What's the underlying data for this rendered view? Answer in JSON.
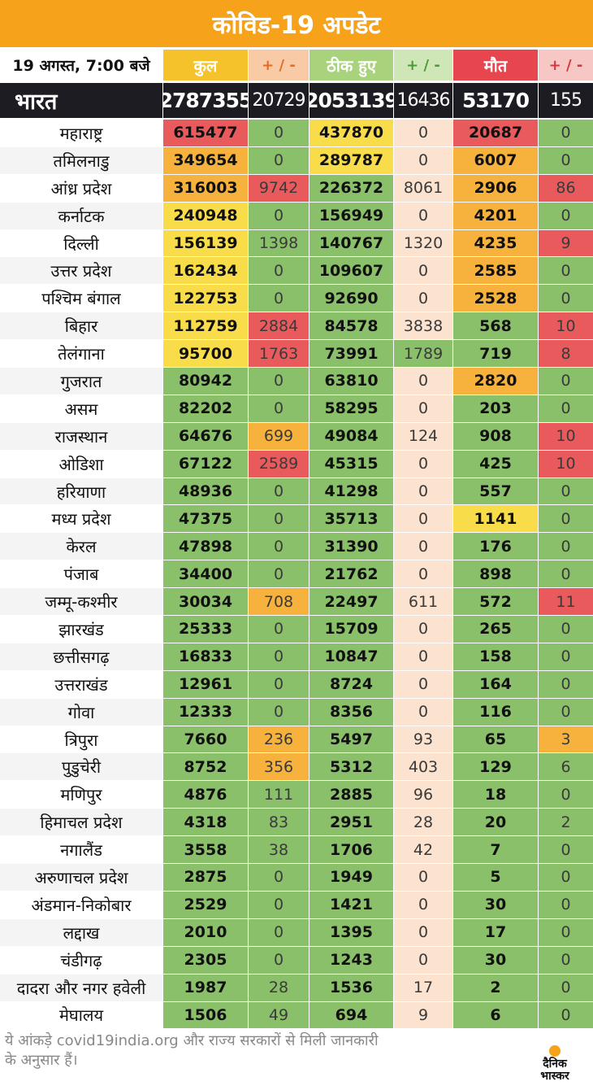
{
  "title": "कोविड-19 अपडेट",
  "header": {
    "date": "19 अगस्त, 7:00 बजे",
    "total": "कुल",
    "pm1": "+ / -",
    "recovered": "ठीक हुए",
    "pm2": "+ / -",
    "deaths": "मौत",
    "pm3": "+ / -"
  },
  "india": {
    "name": "भारत",
    "total": "2787355",
    "total_change": "20729",
    "recovered": "2053139",
    "recovered_change": "16436",
    "deaths": "53170",
    "deaths_change": "155"
  },
  "rows": [
    {
      "state": "महाराष्ट्र",
      "total": "615477",
      "total_change": "0",
      "recovered": "437870",
      "recovered_change": "0",
      "deaths": "20687",
      "deaths_change": "0"
    },
    {
      "state": "तमिलनाडु",
      "total": "349654",
      "total_change": "0",
      "recovered": "289787",
      "recovered_change": "0",
      "deaths": "6007",
      "deaths_change": "0"
    },
    {
      "state": "आंध्र प्रदेश",
      "total": "316003",
      "total_change": "9742",
      "recovered": "226372",
      "recovered_change": "8061",
      "deaths": "2906",
      "deaths_change": "86"
    },
    {
      "state": "कर्नाटक",
      "total": "240948",
      "total_change": "0",
      "recovered": "156949",
      "recovered_change": "0",
      "deaths": "4201",
      "deaths_change": "0"
    },
    {
      "state": "दिल्ली",
      "total": "156139",
      "total_change": "1398",
      "recovered": "140767",
      "recovered_change": "1320",
      "deaths": "4235",
      "deaths_change": "9"
    },
    {
      "state": "उत्तर प्रदेश",
      "total": "162434",
      "total_change": "0",
      "recovered": "109607",
      "recovered_change": "0",
      "deaths": "2585",
      "deaths_change": "0"
    },
    {
      "state": "पश्चिम बंगाल",
      "total": "122753",
      "total_change": "0",
      "recovered": "92690",
      "recovered_change": "0",
      "deaths": "2528",
      "deaths_change": "0"
    },
    {
      "state": "बिहार",
      "total": "112759",
      "total_change": "2884",
      "recovered": "84578",
      "recovered_change": "3838",
      "deaths": "568",
      "deaths_change": "10"
    },
    {
      "state": "तेलंगाना",
      "total": "95700",
      "total_change": "1763",
      "recovered": "73991",
      "recovered_change": "1789",
      "deaths": "719",
      "deaths_change": "8"
    },
    {
      "state": "गुजरात",
      "total": "80942",
      "total_change": "0",
      "recovered": "63810",
      "recovered_change": "0",
      "deaths": "2820",
      "deaths_change": "0"
    },
    {
      "state": "असम",
      "total": "82202",
      "total_change": "0",
      "recovered": "58295",
      "recovered_change": "0",
      "deaths": "203",
      "deaths_change": "0"
    },
    {
      "state": "राजस्थान",
      "total": "64676",
      "total_change": "699",
      "recovered": "49084",
      "recovered_change": "124",
      "deaths": "908",
      "deaths_change": "10"
    },
    {
      "state": "ओडिशा",
      "total": "67122",
      "total_change": "2589",
      "recovered": "45315",
      "recovered_change": "0",
      "deaths": "425",
      "deaths_change": "10"
    },
    {
      "state": "हरियाणा",
      "total": "48936",
      "total_change": "0",
      "recovered": "41298",
      "recovered_change": "0",
      "deaths": "557",
      "deaths_change": "0"
    },
    {
      "state": "मध्य प्रदेश",
      "total": "47375",
      "total_change": "0",
      "recovered": "35713",
      "recovered_change": "0",
      "deaths": "1141",
      "deaths_change": "0"
    },
    {
      "state": "केरल",
      "total": "47898",
      "total_change": "0",
      "recovered": "31390",
      "recovered_change": "0",
      "deaths": "176",
      "deaths_change": "0"
    },
    {
      "state": "पंजाब",
      "total": "34400",
      "total_change": "0",
      "recovered": "21762",
      "recovered_change": "0",
      "deaths": "898",
      "deaths_change": "0"
    },
    {
      "state": "जम्मू-कश्मीर",
      "total": "30034",
      "total_change": "708",
      "recovered": "22497",
      "recovered_change": "611",
      "deaths": "572",
      "deaths_change": "11"
    },
    {
      "state": "झारखंड",
      "total": "25333",
      "total_change": "0",
      "recovered": "15709",
      "recovered_change": "0",
      "deaths": "265",
      "deaths_change": "0"
    },
    {
      "state": "छत्तीसगढ़",
      "total": "16833",
      "total_change": "0",
      "recovered": "10847",
      "recovered_change": "0",
      "deaths": "158",
      "deaths_change": "0"
    },
    {
      "state": "उत्तराखंड",
      "total": "12961",
      "total_change": "0",
      "recovered": "8724",
      "recovered_change": "0",
      "deaths": "164",
      "deaths_change": "0"
    },
    {
      "state": "गोवा",
      "total": "12333",
      "total_change": "0",
      "recovered": "8356",
      "recovered_change": "0",
      "deaths": "116",
      "deaths_change": "0"
    },
    {
      "state": "त्रिपुरा",
      "total": "7660",
      "total_change": "236",
      "recovered": "5497",
      "recovered_change": "93",
      "deaths": "65",
      "deaths_change": "3"
    },
    {
      "state": "पुडुचेरी",
      "total": "8752",
      "total_change": "356",
      "recovered": "5312",
      "recovered_change": "403",
      "deaths": "129",
      "deaths_change": "6"
    },
    {
      "state": "मणिपुर",
      "total": "4876",
      "total_change": "111",
      "recovered": "2885",
      "recovered_change": "96",
      "deaths": "18",
      "deaths_change": "0"
    },
    {
      "state": "हिमाचल प्रदेश",
      "total": "4318",
      "total_change": "83",
      "recovered": "2951",
      "recovered_change": "28",
      "deaths": "20",
      "deaths_change": "2"
    },
    {
      "state": "नगालैंड",
      "total": "3558",
      "total_change": "38",
      "recovered": "1706",
      "recovered_change": "42",
      "deaths": "7",
      "deaths_change": "0"
    },
    {
      "state": "अरुणाचल प्रदेश",
      "total": "2875",
      "total_change": "0",
      "recovered": "1949",
      "recovered_change": "0",
      "deaths": "5",
      "deaths_change": "0"
    },
    {
      "state": "अंडमान-निकोबार",
      "total": "2529",
      "total_change": "0",
      "recovered": "1421",
      "recovered_change": "0",
      "deaths": "30",
      "deaths_change": "0"
    },
    {
      "state": "लद्दाख",
      "total": "2010",
      "total_change": "0",
      "recovered": "1395",
      "recovered_change": "0",
      "deaths": "17",
      "deaths_change": "0"
    },
    {
      "state": "चंडीगढ़",
      "total": "2305",
      "total_change": "0",
      "recovered": "1243",
      "recovered_change": "0",
      "deaths": "30",
      "deaths_change": "0"
    },
    {
      "state": "दादरा और नगर हवेली",
      "total": "1987",
      "total_change": "28",
      "recovered": "1536",
      "recovered_change": "17",
      "deaths": "2",
      "deaths_change": "0"
    },
    {
      "state": "मेघालय",
      "total": "1506",
      "total_change": "49",
      "recovered": "694",
      "recovered_change": "9",
      "deaths": "6",
      "deaths_change": "0"
    }
  ],
  "footnote": "ये आंकड़े covid19india.org और राज्य सरकारों से मिली जानकारी के अनुसार हैं।",
  "brand": {
    "line1": "दैनिक",
    "line2": "भास्कर"
  },
  "colors": {
    "title_bg": "#f7a21b",
    "header_total": "#f6c22b",
    "header_recovered": "#a9d27d",
    "header_deaths": "#e8464e",
    "header_pm": "#f8cba6",
    "dark_row": "#1c1c22",
    "green": "#8bc06a",
    "yellow": "#f8dc4a",
    "orange": "#f7b23e",
    "red": "#e95a5c",
    "peach": "#fbe3d0",
    "name_bg": "#ffffff",
    "stripe": "#f4f4f4"
  }
}
